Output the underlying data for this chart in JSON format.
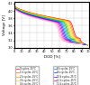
{
  "title": "",
  "xlabel": "DOD [%]",
  "ylabel": "Voltage [V]",
  "xlim": [
    0,
    100
  ],
  "ylim": [
    3.0,
    4.25
  ],
  "yticks": [
    3.0,
    3.2,
    3.4,
    3.6,
    3.8,
    4.0,
    4.2
  ],
  "xticks": [
    0,
    10,
    20,
    30,
    40,
    50,
    60,
    70,
    80,
    90,
    100
  ],
  "curves": [
    {
      "color": "#ff0000",
      "label": "0 cycles, 25°C"
    },
    {
      "color": "#ff6600",
      "label": "1 k cycles, 25°C"
    },
    {
      "color": "#ffaa00",
      "label": "2 k cycles, 25°C"
    },
    {
      "color": "#ffdd00",
      "label": "3 k cycles, 25°C"
    },
    {
      "color": "#ccdd00",
      "label": "4 k cycles, 25°C"
    },
    {
      "color": "#66cc00",
      "label": "5 k cycles, 25°C"
    },
    {
      "color": "#00bb44",
      "label": "6 k cycles, 25°C"
    },
    {
      "color": "#00bbaa",
      "label": "7 k cycles, 25°C"
    },
    {
      "color": "#0088ff",
      "label": "8 k cycles, 25°C"
    },
    {
      "color": "#0033ff",
      "label": "9 k cycles, 25°C"
    },
    {
      "color": "#6600cc",
      "label": "10 k cycles, 25°C"
    },
    {
      "color": "#cc00bb",
      "label": "11 k cycles, 25°C"
    },
    {
      "color": "#ff44cc",
      "label": "12 k cycles, 25°C"
    },
    {
      "color": "#ff88cc",
      "label": "0 k cycles, 45°C"
    },
    {
      "color": "#ffbbdd",
      "label": "1 k cycles, 45°C"
    }
  ],
  "background_color": "#ffffff",
  "grid_color": "#cccccc"
}
